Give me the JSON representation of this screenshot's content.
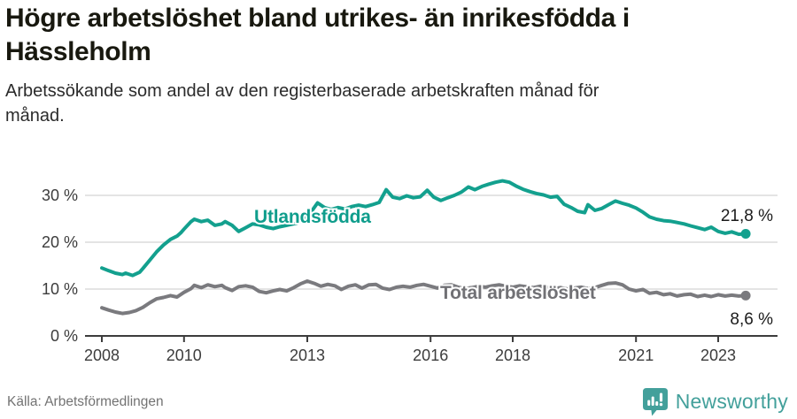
{
  "header": {
    "title": "Högre arbetslöshet bland utrikes- än inrikesfödda i Hässleholm",
    "subtitle": "Arbetssökande som andel av den registerbaserade arbetskraften månad för månad."
  },
  "footer": {
    "source": "Källa: Arbetsförmedlingen",
    "brand": "Newsworthy"
  },
  "colors": {
    "accent_teal": "#13a08e",
    "series_gray": "#7a7a7e",
    "gridline": "#dcdcdc",
    "axis": "#3c3c3c",
    "tick_label": "#3c3c3c",
    "end_label": "#1b1b1b",
    "logo_teal": "#43a09b",
    "background": "#ffffff"
  },
  "chart_data": {
    "type": "line",
    "title": "Högre arbetslöshet bland utrikes- än inrikesfödda i Hässleholm",
    "subtitle": "Arbetssökande som andel av den registerbaserade arbetskraften månad för månad.",
    "unit": "%",
    "grid": true,
    "x_range": [
      2008.0,
      2023.67
    ],
    "ylim": [
      0,
      35
    ],
    "y_axis": {
      "ticks": [
        {
          "value": 0,
          "label": "0 %"
        },
        {
          "value": 10,
          "label": "10 %"
        },
        {
          "value": 20,
          "label": "20 %"
        },
        {
          "value": 30,
          "label": "30 %"
        }
      ]
    },
    "x_axis": {
      "ticks": [
        {
          "year": 2008,
          "label": "2008"
        },
        {
          "year": 2010,
          "label": "2010"
        },
        {
          "year": 2013,
          "label": "2013"
        },
        {
          "year": 2016,
          "label": "2016"
        },
        {
          "year": 2018,
          "label": "2018"
        },
        {
          "year": 2021,
          "label": "2021"
        },
        {
          "year": 2023,
          "label": "2023"
        }
      ]
    },
    "series": [
      {
        "id": "total",
        "name": "Total arbetslöshet",
        "color": "#7a7a7e",
        "label_color": "#717175",
        "end_label": "8,6 %",
        "end_value": 8.6,
        "points": [
          [
            2008.0,
            6.0
          ],
          [
            2008.17,
            5.5
          ],
          [
            2008.33,
            5.1
          ],
          [
            2008.5,
            4.8
          ],
          [
            2008.67,
            5.0
          ],
          [
            2008.83,
            5.4
          ],
          [
            2009.0,
            6.1
          ],
          [
            2009.17,
            7.1
          ],
          [
            2009.33,
            7.9
          ],
          [
            2009.5,
            8.2
          ],
          [
            2009.67,
            8.6
          ],
          [
            2009.83,
            8.3
          ],
          [
            2010.0,
            9.3
          ],
          [
            2010.17,
            10.1
          ],
          [
            2010.25,
            10.8
          ],
          [
            2010.42,
            10.3
          ],
          [
            2010.58,
            10.9
          ],
          [
            2010.75,
            10.5
          ],
          [
            2010.92,
            10.8
          ],
          [
            2011.0,
            10.3
          ],
          [
            2011.17,
            9.7
          ],
          [
            2011.33,
            10.5
          ],
          [
            2011.5,
            10.7
          ],
          [
            2011.67,
            10.4
          ],
          [
            2011.83,
            9.5
          ],
          [
            2012.0,
            9.2
          ],
          [
            2012.17,
            9.6
          ],
          [
            2012.33,
            9.9
          ],
          [
            2012.5,
            9.6
          ],
          [
            2012.67,
            10.3
          ],
          [
            2012.83,
            11.1
          ],
          [
            2013.0,
            11.7
          ],
          [
            2013.17,
            11.2
          ],
          [
            2013.33,
            10.6
          ],
          [
            2013.5,
            11.0
          ],
          [
            2013.67,
            10.7
          ],
          [
            2013.83,
            9.9
          ],
          [
            2014.0,
            10.6
          ],
          [
            2014.17,
            10.9
          ],
          [
            2014.33,
            10.2
          ],
          [
            2014.5,
            10.9
          ],
          [
            2014.67,
            11.0
          ],
          [
            2014.83,
            10.2
          ],
          [
            2015.0,
            9.9
          ],
          [
            2015.17,
            10.4
          ],
          [
            2015.33,
            10.6
          ],
          [
            2015.5,
            10.4
          ],
          [
            2015.67,
            10.8
          ],
          [
            2015.83,
            11.0
          ],
          [
            2016.0,
            10.6
          ],
          [
            2016.17,
            10.2
          ],
          [
            2016.33,
            10.8
          ],
          [
            2016.5,
            10.9
          ],
          [
            2016.67,
            10.4
          ],
          [
            2016.83,
            10.1
          ],
          [
            2017.0,
            10.3
          ],
          [
            2017.17,
            10.6
          ],
          [
            2017.33,
            10.4
          ],
          [
            2017.5,
            10.7
          ],
          [
            2017.67,
            10.9
          ],
          [
            2017.83,
            10.6
          ],
          [
            2018.0,
            10.4
          ],
          [
            2018.17,
            10.7
          ],
          [
            2018.33,
            10.5
          ],
          [
            2018.5,
            10.3
          ],
          [
            2018.67,
            10.6
          ],
          [
            2018.83,
            10.4
          ],
          [
            2019.0,
            10.1
          ],
          [
            2019.17,
            10.3
          ],
          [
            2019.33,
            10.0
          ],
          [
            2019.5,
            10.2
          ],
          [
            2019.67,
            10.4
          ],
          [
            2019.83,
            10.1
          ],
          [
            2020.0,
            10.3
          ],
          [
            2020.17,
            10.8
          ],
          [
            2020.33,
            11.2
          ],
          [
            2020.5,
            11.3
          ],
          [
            2020.67,
            10.9
          ],
          [
            2020.83,
            10.0
          ],
          [
            2021.0,
            9.6
          ],
          [
            2021.17,
            9.9
          ],
          [
            2021.33,
            9.1
          ],
          [
            2021.5,
            9.3
          ],
          [
            2021.67,
            8.8
          ],
          [
            2021.83,
            9.0
          ],
          [
            2022.0,
            8.5
          ],
          [
            2022.17,
            8.8
          ],
          [
            2022.33,
            8.9
          ],
          [
            2022.5,
            8.4
          ],
          [
            2022.67,
            8.7
          ],
          [
            2022.83,
            8.4
          ],
          [
            2023.0,
            8.8
          ],
          [
            2023.17,
            8.5
          ],
          [
            2023.33,
            8.7
          ],
          [
            2023.5,
            8.5
          ],
          [
            2023.67,
            8.6
          ]
        ]
      },
      {
        "id": "utlandsfodda",
        "name": "Utlandsfödda",
        "color": "#13a08e",
        "label_color": "#0f9d8c",
        "end_label": "21,8 %",
        "end_value": 21.8,
        "points": [
          [
            2008.0,
            14.5
          ],
          [
            2008.17,
            13.9
          ],
          [
            2008.33,
            13.4
          ],
          [
            2008.5,
            13.1
          ],
          [
            2008.58,
            13.4
          ],
          [
            2008.75,
            12.9
          ],
          [
            2008.92,
            13.6
          ],
          [
            2009.0,
            14.4
          ],
          [
            2009.17,
            16.2
          ],
          [
            2009.33,
            17.9
          ],
          [
            2009.5,
            19.4
          ],
          [
            2009.67,
            20.6
          ],
          [
            2009.83,
            21.3
          ],
          [
            2009.92,
            22.0
          ],
          [
            2010.0,
            22.8
          ],
          [
            2010.17,
            24.4
          ],
          [
            2010.25,
            24.9
          ],
          [
            2010.42,
            24.4
          ],
          [
            2010.58,
            24.7
          ],
          [
            2010.75,
            23.6
          ],
          [
            2010.92,
            23.9
          ],
          [
            2011.0,
            24.4
          ],
          [
            2011.17,
            23.6
          ],
          [
            2011.33,
            22.3
          ],
          [
            2011.5,
            23.1
          ],
          [
            2011.67,
            23.9
          ],
          [
            2011.83,
            23.7
          ],
          [
            2012.0,
            23.2
          ],
          [
            2012.17,
            22.9
          ],
          [
            2012.33,
            23.3
          ],
          [
            2012.5,
            23.6
          ],
          [
            2012.75,
            24.1
          ],
          [
            2012.92,
            24.8
          ],
          [
            2013.08,
            26.3
          ],
          [
            2013.25,
            28.4
          ],
          [
            2013.42,
            27.4
          ],
          [
            2013.58,
            27.0
          ],
          [
            2013.75,
            27.4
          ],
          [
            2013.92,
            27.1
          ],
          [
            2014.08,
            27.6
          ],
          [
            2014.25,
            27.9
          ],
          [
            2014.42,
            27.6
          ],
          [
            2014.58,
            28.0
          ],
          [
            2014.75,
            28.5
          ],
          [
            2014.92,
            31.2
          ],
          [
            2015.08,
            29.6
          ],
          [
            2015.25,
            29.3
          ],
          [
            2015.42,
            29.9
          ],
          [
            2015.58,
            29.5
          ],
          [
            2015.75,
            29.7
          ],
          [
            2015.92,
            31.1
          ],
          [
            2016.08,
            29.6
          ],
          [
            2016.25,
            28.9
          ],
          [
            2016.42,
            29.5
          ],
          [
            2016.58,
            30.0
          ],
          [
            2016.75,
            30.7
          ],
          [
            2016.92,
            31.8
          ],
          [
            2017.08,
            31.2
          ],
          [
            2017.25,
            31.9
          ],
          [
            2017.42,
            32.4
          ],
          [
            2017.58,
            32.8
          ],
          [
            2017.75,
            33.1
          ],
          [
            2017.92,
            32.8
          ],
          [
            2018.08,
            32.0
          ],
          [
            2018.25,
            31.3
          ],
          [
            2018.42,
            30.8
          ],
          [
            2018.58,
            30.4
          ],
          [
            2018.75,
            30.1
          ],
          [
            2018.92,
            29.6
          ],
          [
            2019.08,
            29.8
          ],
          [
            2019.25,
            28.1
          ],
          [
            2019.42,
            27.4
          ],
          [
            2019.58,
            26.6
          ],
          [
            2019.75,
            26.3
          ],
          [
            2019.83,
            28.0
          ],
          [
            2020.0,
            26.8
          ],
          [
            2020.17,
            27.2
          ],
          [
            2020.33,
            28.0
          ],
          [
            2020.5,
            28.8
          ],
          [
            2020.67,
            28.3
          ],
          [
            2020.83,
            27.9
          ],
          [
            2021.0,
            27.3
          ],
          [
            2021.17,
            26.4
          ],
          [
            2021.33,
            25.4
          ],
          [
            2021.5,
            24.9
          ],
          [
            2021.67,
            24.6
          ],
          [
            2021.83,
            24.5
          ],
          [
            2022.0,
            24.2
          ],
          [
            2022.17,
            23.9
          ],
          [
            2022.33,
            23.5
          ],
          [
            2022.5,
            23.1
          ],
          [
            2022.67,
            22.7
          ],
          [
            2022.83,
            23.2
          ],
          [
            2023.0,
            22.3
          ],
          [
            2023.17,
            21.9
          ],
          [
            2023.33,
            22.2
          ],
          [
            2023.5,
            21.7
          ],
          [
            2023.67,
            21.8
          ]
        ]
      }
    ],
    "legend_position": "inline-labels"
  }
}
